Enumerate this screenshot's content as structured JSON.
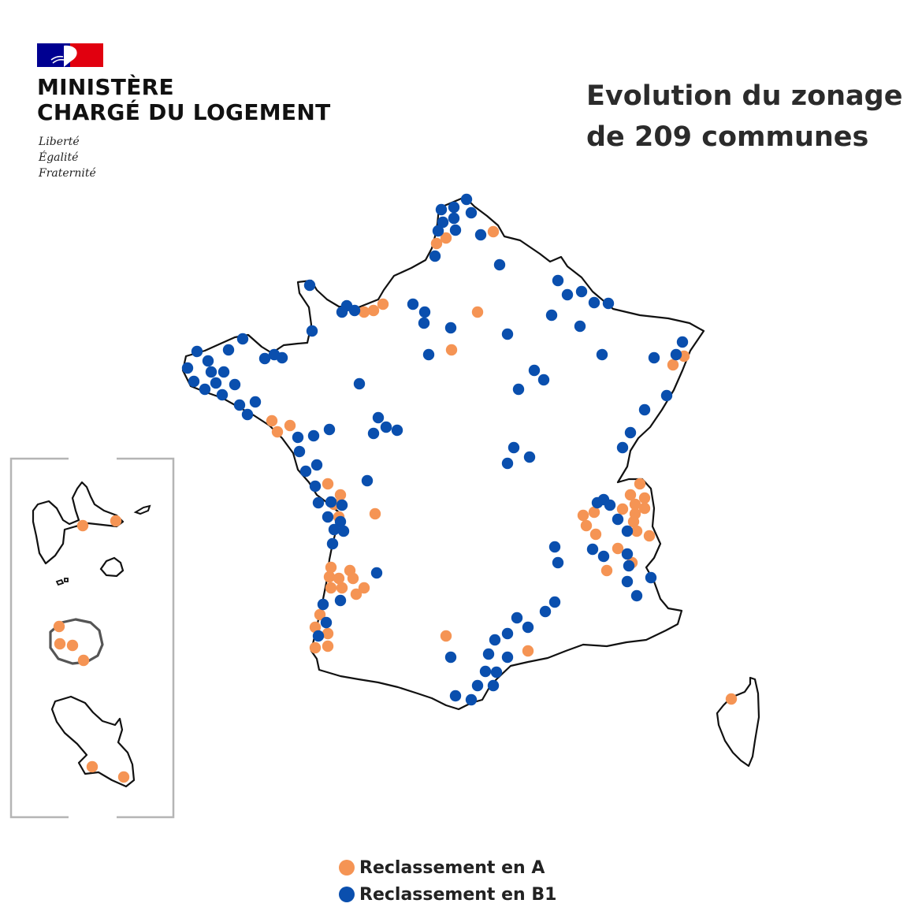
{
  "header": {
    "ministry_line1": "MINISTÈRE",
    "ministry_line2": "CHARGÉ DU LOGEMENT",
    "motto": [
      "Liberté",
      "Égalité",
      "Fraternité"
    ],
    "flag_colors": [
      "#000091",
      "#ffffff",
      "#e1000f"
    ]
  },
  "title": {
    "line1": "Evolution du zonage",
    "line2": "de 209 communes"
  },
  "legend": {
    "items": [
      {
        "label": "Reclassement en A",
        "color": "#f59454"
      },
      {
        "label": "Reclassement en B1",
        "color": "#0a4fae"
      }
    ]
  },
  "map": {
    "regions": [
      "France métropolitaine",
      "Corse",
      "Guadeloupe",
      "La Réunion",
      "Martinique"
    ],
    "category_colors": {
      "A": "#f59454",
      "B1": "#0a4fae"
    },
    "outline_color": "#111111",
    "inset_frame_color": "#b5b5b5"
  }
}
